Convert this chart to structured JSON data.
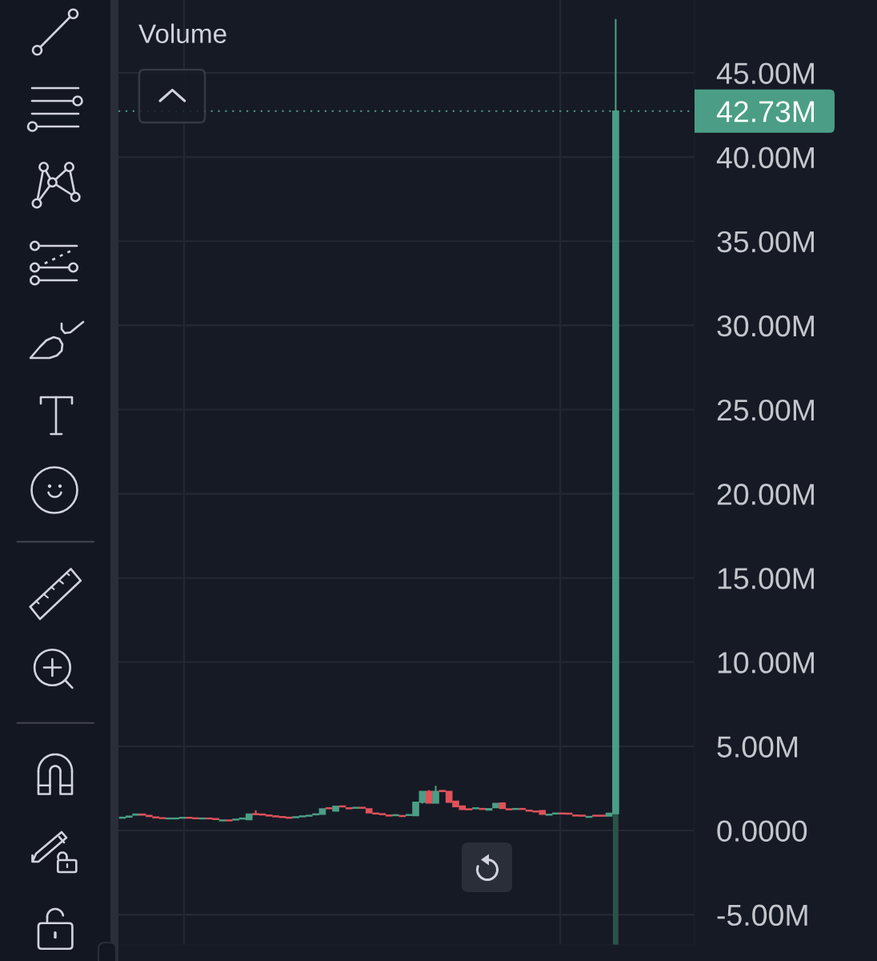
{
  "chart_data": {
    "type": "candlestick",
    "title": "Volume",
    "categories": [
      null,
      null,
      null,
      null,
      null,
      null,
      null,
      null,
      null,
      null,
      null,
      null,
      null,
      null,
      null,
      null,
      null,
      null,
      null,
      null,
      null,
      null,
      null,
      null,
      null,
      null,
      null,
      null,
      null,
      null,
      null,
      null,
      null,
      null,
      null,
      null,
      null,
      null,
      null,
      null,
      null,
      null,
      null,
      null,
      null,
      null,
      null,
      null,
      null,
      null,
      null,
      null,
      null,
      null,
      null,
      null,
      null,
      null,
      null,
      null,
      null,
      null,
      null,
      null,
      null,
      null,
      null,
      null,
      null,
      null,
      null,
      null,
      null,
      null,
      null
    ],
    "ohlc": [
      [
        0.74,
        0.78,
        0.74,
        0.78
      ],
      [
        0.8,
        0.85,
        0.8,
        0.85
      ],
      [
        0.92,
        0.97,
        0.92,
        0.97
      ],
      [
        0.97,
        0.97,
        0.92,
        0.92
      ],
      [
        0.89,
        0.89,
        0.84,
        0.84
      ],
      [
        0.8,
        0.8,
        0.76,
        0.76
      ],
      [
        0.75,
        0.75,
        0.72,
        0.72
      ],
      [
        0.7,
        0.73,
        0.7,
        0.73
      ],
      [
        0.7,
        0.73,
        0.7,
        0.73
      ],
      [
        0.74,
        0.77,
        0.74,
        0.77
      ],
      [
        0.77,
        0.77,
        0.74,
        0.74
      ],
      [
        0.74,
        0.74,
        0.71,
        0.71
      ],
      [
        0.7,
        0.73,
        0.7,
        0.73
      ],
      [
        0.73,
        0.73,
        0.7,
        0.7
      ],
      [
        0.7,
        0.7,
        0.66,
        0.66
      ],
      [
        0.58,
        0.62,
        0.58,
        0.62
      ],
      [
        0.62,
        0.62,
        0.58,
        0.58
      ],
      [
        0.63,
        0.67,
        0.63,
        0.67
      ],
      [
        0.69,
        0.73,
        0.69,
        0.73
      ],
      [
        0.65,
        0.97,
        0.65,
        0.97
      ],
      [
        0.99,
        1.2,
        0.95,
        0.95
      ],
      [
        0.97,
        0.97,
        0.93,
        0.93
      ],
      [
        0.91,
        0.91,
        0.87,
        0.87
      ],
      [
        0.86,
        0.86,
        0.82,
        0.82
      ],
      [
        0.82,
        0.82,
        0.78,
        0.78
      ],
      [
        0.78,
        0.78,
        0.74,
        0.74
      ],
      [
        0.77,
        0.81,
        0.77,
        0.81
      ],
      [
        0.82,
        0.86,
        0.82,
        0.86
      ],
      [
        0.86,
        0.9,
        0.86,
        0.9
      ],
      [
        0.94,
        0.98,
        0.94,
        0.98
      ],
      [
        0.97,
        1.28,
        0.97,
        1.28
      ],
      [
        1.34,
        1.34,
        1.3,
        1.3
      ],
      [
        1.16,
        1.44,
        1.16,
        1.44
      ],
      [
        1.45,
        1.45,
        1.41,
        1.41
      ],
      [
        1.34,
        1.34,
        1.3,
        1.3
      ],
      [
        1.33,
        1.37,
        1.33,
        1.37
      ],
      [
        1.37,
        1.37,
        1.33,
        1.33
      ],
      [
        1.28,
        1.28,
        1.05,
        1.05
      ],
      [
        1.03,
        1.03,
        0.99,
        0.99
      ],
      [
        0.99,
        0.99,
        0.95,
        0.95
      ],
      [
        0.91,
        0.91,
        0.87,
        0.87
      ],
      [
        0.89,
        0.93,
        0.89,
        0.93
      ],
      [
        0.88,
        0.88,
        0.84,
        0.84
      ],
      [
        0.9,
        0.94,
        0.9,
        0.94
      ],
      [
        0.89,
        1.68,
        0.89,
        1.68
      ],
      [
        1.68,
        2.32,
        1.6,
        2.32
      ],
      [
        2.32,
        2.4,
        1.63,
        1.63
      ],
      [
        1.63,
        2.66,
        1.63,
        2.32
      ],
      [
        2.37,
        2.37,
        2.32,
        2.32
      ],
      [
        2.32,
        2.32,
        1.68,
        1.68
      ],
      [
        1.74,
        1.74,
        1.42,
        1.42
      ],
      [
        1.45,
        1.45,
        1.26,
        1.26
      ],
      [
        1.28,
        1.28,
        1.24,
        1.24
      ],
      [
        1.3,
        1.34,
        1.3,
        1.34
      ],
      [
        1.3,
        1.3,
        1.26,
        1.26
      ],
      [
        1.22,
        1.3,
        1.22,
        1.3
      ],
      [
        1.36,
        1.6,
        1.36,
        1.6
      ],
      [
        1.63,
        1.63,
        1.31,
        1.31
      ],
      [
        1.28,
        1.28,
        1.24,
        1.24
      ],
      [
        1.26,
        1.3,
        1.26,
        1.3
      ],
      [
        1.3,
        1.3,
        1.26,
        1.26
      ],
      [
        1.2,
        1.2,
        1.16,
        1.16
      ],
      [
        1.15,
        1.15,
        1.11,
        1.11
      ],
      [
        1.18,
        1.18,
        0.97,
        0.97
      ],
      [
        0.92,
        0.96,
        0.92,
        0.96
      ],
      [
        0.99,
        1.03,
        0.99,
        1.03
      ],
      [
        1.03,
        1.03,
        0.99,
        0.99
      ],
      [
        1.02,
        1.02,
        0.98,
        0.98
      ],
      [
        0.91,
        0.91,
        0.87,
        0.87
      ],
      [
        0.9,
        0.9,
        0.86,
        0.86
      ],
      [
        0.79,
        0.83,
        0.79,
        0.83
      ],
      [
        0.9,
        0.9,
        0.86,
        0.86
      ],
      [
        0.9,
        0.9,
        0.86,
        0.86
      ],
      [
        0.86,
        1.02,
        0.86,
        1.02
      ],
      [
        1.0,
        48.2,
        1.0,
        42.73
      ]
    ],
    "colors": [
      "#4b9e85",
      "#4b9e85",
      "#4b9e85",
      "#e0525a",
      "#e0525a",
      "#e0525a",
      "#e0525a",
      "#4b9e85",
      "#4b9e85",
      "#4b9e85",
      "#e0525a",
      "#e0525a",
      "#4b9e85",
      "#e0525a",
      "#e0525a",
      "#4b9e85",
      "#e0525a",
      "#4b9e85",
      "#4b9e85",
      "#4b9e85",
      "#e0525a",
      "#e0525a",
      "#e0525a",
      "#e0525a",
      "#e0525a",
      "#e0525a",
      "#4b9e85",
      "#4b9e85",
      "#4b9e85",
      "#4b9e85",
      "#4b9e85",
      "#e0525a",
      "#4b9e85",
      "#e0525a",
      "#e0525a",
      "#4b9e85",
      "#e0525a",
      "#e0525a",
      "#e0525a",
      "#e0525a",
      "#e0525a",
      "#4b9e85",
      "#e0525a",
      "#4b9e85",
      "#4b9e85",
      "#4b9e85",
      "#e0525a",
      "#4b9e85",
      "#e0525a",
      "#e0525a",
      "#e0525a",
      "#e0525a",
      "#e0525a",
      "#4b9e85",
      "#e0525a",
      "#4b9e85",
      "#4b9e85",
      "#e0525a",
      "#e0525a",
      "#4b9e85",
      "#e0525a",
      "#e0525a",
      "#e0525a",
      "#e0525a",
      "#4b9e85",
      "#4b9e85",
      "#e0525a",
      "#e0525a",
      "#e0525a",
      "#e0525a",
      "#4b9e85",
      "#e0525a",
      "#e0525a",
      "#4b9e85",
      "#4b9e85"
    ],
    "ylim": [
      -6.8,
      49.33
    ],
    "yticks": [
      {
        "value": 45,
        "label": "45.00M"
      },
      {
        "value": 40,
        "label": "40.00M"
      },
      {
        "value": 35,
        "label": "35.00M"
      },
      {
        "value": 30,
        "label": "30.00M"
      },
      {
        "value": 25,
        "label": "25.00M"
      },
      {
        "value": 20,
        "label": "20.00M"
      },
      {
        "value": 15,
        "label": "15.00M"
      },
      {
        "value": 10,
        "label": "10.00M"
      },
      {
        "value": 5,
        "label": "5.00M"
      },
      {
        "value": 0,
        "label": "0.0000"
      },
      {
        "value": -5,
        "label": "-5.00M"
      }
    ],
    "ref_lines": [
      {
        "axis": "y",
        "value": 42.73,
        "label": "42.73M",
        "color": "#4b9e85",
        "line_style": "dotted"
      }
    ],
    "grid": true,
    "tick_labels": "y"
  }
}
